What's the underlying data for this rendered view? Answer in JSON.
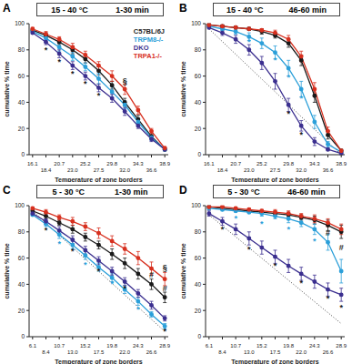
{
  "chart_data": [
    {
      "type": "line",
      "panel": "A",
      "title": "15 - 40 °C",
      "subtitle": "1-30 min",
      "x_label": "Temperature of zone borders",
      "y_label": "cumulative % time",
      "legend": "upper right",
      "x": [
        16.1,
        18.4,
        20.7,
        23.0,
        25.2,
        27.5,
        29.8,
        32.0,
        34.3,
        36.6,
        38.9
      ],
      "xlim": [
        15.5,
        39.5
      ],
      "xticks": [
        16.1,
        18.4,
        20.7,
        {
          "value": 23.0,
          "label": "23.0"
        },
        25.2,
        27.5,
        29.8,
        {
          "value": 32.0,
          "label": "32.0"
        },
        34.3,
        36.6,
        38.9
      ],
      "ylim": [
        0,
        100
      ],
      "yticks": [
        0,
        20,
        40,
        60,
        80,
        100
      ],
      "series": [
        {
          "name": "C57BL/6J",
          "color": "#1a1a1a",
          "marker": "circle",
          "values": [
            95,
            91,
            86,
            80,
            73,
            64,
            53,
            40,
            27,
            14,
            4
          ],
          "errors": [
            1,
            2,
            2,
            3,
            3,
            3,
            3,
            3,
            3,
            2,
            1
          ]
        },
        {
          "name": "TRPM8-/-",
          "color": "#2b9fd9",
          "marker": "circle",
          "values": [
            94,
            89,
            82,
            75,
            67,
            58,
            48,
            38,
            25,
            13,
            4
          ],
          "errors": [
            1,
            2,
            3,
            3,
            3,
            4,
            4,
            3,
            3,
            2,
            1
          ]
        },
        {
          "name": "DKO",
          "color": "#3b2f8f",
          "marker": "circle",
          "values": [
            93,
            86,
            77,
            68,
            60,
            51,
            43,
            33,
            22,
            12,
            4
          ],
          "errors": [
            1,
            2,
            3,
            3,
            3,
            3,
            3,
            3,
            2,
            2,
            1
          ]
        },
        {
          "name": "TRPA1-/-",
          "color": "#d7301f",
          "marker": "circle",
          "values": [
            96,
            92,
            88,
            82,
            76,
            68,
            60,
            50,
            34,
            18,
            5
          ],
          "errors": [
            1,
            2,
            2,
            3,
            3,
            3,
            4,
            4,
            3,
            2,
            1
          ]
        }
      ],
      "annotations": [
        {
          "text": "*",
          "x": 18.4,
          "y": 80,
          "color": "#1a1a1a"
        },
        {
          "text": "*",
          "x": 20.7,
          "y": 71,
          "color": "#1a1a1a"
        },
        {
          "text": "*",
          "x": 23.0,
          "y": 62,
          "color": "#1a1a1a"
        },
        {
          "text": "*",
          "x": 25.2,
          "y": 54,
          "color": "#1a1a1a"
        },
        {
          "text": "*",
          "x": 27.5,
          "y": 45,
          "color": "#1a1a1a"
        },
        {
          "text": "§",
          "x": 32.0,
          "y": 56,
          "color": "#1a1a1a"
        }
      ]
    },
    {
      "type": "line",
      "panel": "B",
      "title": "15 - 40 °C",
      "subtitle": "46-60 min",
      "x_label": "Temperature of zone borders",
      "y_label": "cumulative % time",
      "x": [
        16.1,
        18.4,
        20.7,
        23.0,
        25.2,
        27.5,
        29.8,
        32.0,
        34.3,
        36.6,
        38.9
      ],
      "xlim": [
        15.5,
        39.5
      ],
      "xticks": [
        16.1,
        18.4,
        20.7,
        {
          "value": 23.0,
          "label": "23.0"
        },
        25.2,
        27.5,
        29.8,
        {
          "value": 32.0,
          "label": "32.0"
        },
        34.3,
        36.6,
        38.9
      ],
      "ylim": [
        0,
        100
      ],
      "yticks": [
        0,
        20,
        40,
        60,
        80,
        100
      ],
      "series": [
        {
          "name": "C57BL/6J",
          "color": "#1a1a1a",
          "marker": "circle",
          "values": [
            99,
            98,
            97,
            96,
            94,
            91,
            85,
            72,
            45,
            15,
            3
          ],
          "errors": [
            1,
            1,
            1,
            1,
            2,
            2,
            3,
            4,
            5,
            3,
            1
          ]
        },
        {
          "name": "TRPM8-/-",
          "color": "#2b9fd9",
          "marker": "circle",
          "values": [
            98,
            96,
            94,
            90,
            85,
            78,
            66,
            50,
            25,
            8,
            2
          ],
          "errors": [
            1,
            1,
            2,
            3,
            4,
            5,
            6,
            6,
            5,
            2,
            1
          ]
        },
        {
          "name": "DKO",
          "color": "#3b2f8f",
          "marker": "circle",
          "values": [
            97,
            93,
            88,
            80,
            70,
            56,
            38,
            22,
            10,
            4,
            1
          ],
          "errors": [
            1,
            2,
            3,
            4,
            5,
            6,
            5,
            4,
            3,
            1,
            1
          ]
        },
        {
          "name": "TRPA1-/-",
          "color": "#d7301f",
          "marker": "circle",
          "values": [
            99,
            98,
            97,
            96,
            95,
            93,
            88,
            75,
            50,
            18,
            3
          ],
          "errors": [
            1,
            1,
            1,
            1,
            1,
            2,
            3,
            4,
            5,
            3,
            1
          ]
        }
      ],
      "reference": {
        "line_style": "dotted",
        "x": [
          16.1,
          38.9
        ],
        "values": [
          96,
          0
        ]
      },
      "annotations": [
        {
          "text": "*",
          "x": 23.0,
          "y": 86,
          "color": "#2b9fd9"
        },
        {
          "text": "*",
          "x": 27.5,
          "y": 72,
          "color": "#2b9fd9"
        },
        {
          "text": "*",
          "x": 29.8,
          "y": 59,
          "color": "#2b9fd9"
        },
        {
          "text": "*",
          "x": 32.0,
          "y": 43,
          "color": "#2b9fd9"
        },
        {
          "text": "*",
          "x": 29.8,
          "y": 31,
          "color": "#1a1a1a"
        },
        {
          "text": "*",
          "x": 32.0,
          "y": 15,
          "color": "#1a1a1a"
        }
      ]
    },
    {
      "type": "line",
      "panel": "C",
      "title": "5 - 30 °C",
      "subtitle": "1-30 min",
      "x_label": "Temperature of zone borders",
      "y_label": "cumulative % time",
      "x": [
        6.1,
        8.4,
        10.7,
        13.0,
        15.2,
        17.5,
        19.8,
        22.0,
        24.3,
        26.6,
        28.9
      ],
      "xlim": [
        5.5,
        29.5
      ],
      "xticks": [
        6.1,
        8.4,
        10.7,
        {
          "value": 13.0,
          "label": "13.0"
        },
        15.2,
        17.5,
        19.8,
        {
          "value": 22.0,
          "label": "22.0"
        },
        24.3,
        26.6,
        28.9
      ],
      "ylim": [
        0,
        100
      ],
      "yticks": [
        0,
        20,
        40,
        60,
        80,
        100
      ],
      "series": [
        {
          "name": "C57BL/6J",
          "color": "#1a1a1a",
          "marker": "circle",
          "values": [
            96,
            92,
            87,
            82,
            76,
            70,
            63,
            56,
            48,
            40,
            30
          ],
          "errors": [
            1,
            2,
            2,
            3,
            3,
            3,
            4,
            4,
            4,
            4,
            4
          ]
        },
        {
          "name": "TRPM8-/-",
          "color": "#2b9fd9",
          "marker": "circle",
          "values": [
            93,
            86,
            78,
            70,
            62,
            53,
            45,
            36,
            27,
            17,
            8
          ],
          "errors": [
            1,
            2,
            3,
            3,
            3,
            3,
            3,
            3,
            3,
            2,
            2
          ]
        },
        {
          "name": "DKO",
          "color": "#3b2f8f",
          "marker": "circle",
          "values": [
            94,
            88,
            81,
            74,
            66,
            58,
            50,
            42,
            33,
            24,
            14
          ],
          "errors": [
            1,
            2,
            3,
            3,
            3,
            3,
            3,
            3,
            3,
            3,
            2
          ]
        },
        {
          "name": "TRPA1-/-",
          "color": "#d7301f",
          "marker": "circle",
          "values": [
            98,
            95,
            91,
            88,
            84,
            79,
            73,
            67,
            60,
            52,
            44
          ],
          "errors": [
            1,
            2,
            2,
            3,
            3,
            4,
            4,
            4,
            5,
            5,
            5
          ]
        }
      ],
      "reference": {
        "line_style": "dotted",
        "x": [
          6.1,
          28.9
        ],
        "values": [
          96,
          4
        ]
      },
      "annotations": [
        {
          "text": "*",
          "x": 8.4,
          "y": 81,
          "color": "#1a1a1a"
        },
        {
          "text": "*",
          "x": 13.0,
          "y": 65,
          "color": "#1a1a1a"
        },
        {
          "text": "*",
          "x": 17.5,
          "y": 50,
          "color": "#1a1a1a"
        },
        {
          "text": "*",
          "x": 22.0,
          "y": 37,
          "color": "#1a1a1a"
        },
        {
          "text": "*",
          "x": 10.7,
          "y": 71,
          "color": "#2b9fd9"
        },
        {
          "text": "*",
          "x": 15.2,
          "y": 55,
          "color": "#2b9fd9"
        },
        {
          "text": "*",
          "x": 19.8,
          "y": 40,
          "color": "#2b9fd9"
        },
        {
          "text": "*",
          "x": 24.3,
          "y": 21,
          "color": "#2b9fd9"
        },
        {
          "text": "#",
          "x": 26.6,
          "y": 47,
          "color": "#1a1a1a"
        },
        {
          "text": "#",
          "x": 28.9,
          "y": 37,
          "color": "#1a1a1a"
        },
        {
          "text": "§",
          "x": 28.9,
          "y": 53,
          "color": "#1a1a1a"
        },
        {
          "text": "*",
          "x": 28.9,
          "y": 4,
          "color": "#1a1a1a"
        }
      ]
    },
    {
      "type": "line",
      "panel": "D",
      "title": "5 - 30 °C",
      "subtitle": "46-60 min",
      "x_label": "Temperature of zone borders",
      "y_label": "cumulative % time",
      "x": [
        6.1,
        8.4,
        10.7,
        13.0,
        15.2,
        17.5,
        19.8,
        22.0,
        24.3,
        26.6,
        28.9
      ],
      "xlim": [
        5.5,
        29.5
      ],
      "xticks": [
        6.1,
        8.4,
        10.7,
        {
          "value": 13.0,
          "label": "13.0"
        },
        15.2,
        17.5,
        19.8,
        {
          "value": 22.0,
          "label": "22.0"
        },
        24.3,
        26.6,
        28.9
      ],
      "ylim": [
        0,
        100
      ],
      "yticks": [
        0,
        20,
        40,
        60,
        80,
        100
      ],
      "series": [
        {
          "name": "C57BL/6J",
          "color": "#1a1a1a",
          "marker": "circle",
          "values": [
            99,
            98,
            97,
            96,
            95,
            94,
            93,
            91,
            89,
            85,
            80
          ],
          "errors": [
            1,
            1,
            1,
            1,
            1,
            2,
            2,
            2,
            3,
            4,
            5
          ]
        },
        {
          "name": "TRPM8-/-",
          "color": "#2b9fd9",
          "marker": "circle",
          "values": [
            98,
            97,
            96,
            95,
            94,
            92,
            90,
            87,
            82,
            72,
            50
          ],
          "errors": [
            1,
            1,
            1,
            1,
            2,
            2,
            3,
            3,
            4,
            6,
            9
          ]
        },
        {
          "name": "DKO",
          "color": "#3b2f8f",
          "marker": "circle",
          "values": [
            94,
            88,
            82,
            75,
            68,
            61,
            54,
            48,
            42,
            36,
            32
          ],
          "errors": [
            2,
            3,
            4,
            5,
            5,
            5,
            5,
            5,
            5,
            5,
            5
          ]
        },
        {
          "name": "TRPA1-/-",
          "color": "#d7301f",
          "marker": "circle",
          "values": [
            99,
            99,
            98,
            97,
            96,
            95,
            94,
            92,
            90,
            87,
            82
          ],
          "errors": [
            1,
            1,
            1,
            1,
            1,
            2,
            2,
            2,
            3,
            3,
            4
          ]
        }
      ],
      "reference": {
        "line_style": "dotted",
        "x": [
          6.1,
          28.9
        ],
        "values": [
          93,
          10
        ]
      },
      "annotations": [
        {
          "text": "*",
          "x": 8.4,
          "y": 82,
          "color": "#1a1a1a"
        },
        {
          "text": "*",
          "x": 13.0,
          "y": 67,
          "color": "#1a1a1a"
        },
        {
          "text": "*",
          "x": 17.5,
          "y": 54,
          "color": "#1a1a1a"
        },
        {
          "text": "*",
          "x": 22.0,
          "y": 41,
          "color": "#1a1a1a"
        },
        {
          "text": "*",
          "x": 26.6,
          "y": 29,
          "color": "#1a1a1a"
        },
        {
          "text": "*",
          "x": 10.7,
          "y": 90,
          "color": "#2b9fd9"
        },
        {
          "text": "*",
          "x": 15.2,
          "y": 86,
          "color": "#2b9fd9"
        },
        {
          "text": "*",
          "x": 19.8,
          "y": 82,
          "color": "#2b9fd9"
        },
        {
          "text": "*",
          "x": 24.3,
          "y": 73,
          "color": "#2b9fd9"
        },
        {
          "text": "#",
          "x": 26.6,
          "y": 79,
          "color": "#1a1a1a"
        },
        {
          "text": "#",
          "x": 28.9,
          "y": 68,
          "color": "#1a1a1a"
        },
        {
          "text": "*",
          "x": 28.9,
          "y": 22,
          "color": "#1a1a1a"
        }
      ]
    }
  ]
}
